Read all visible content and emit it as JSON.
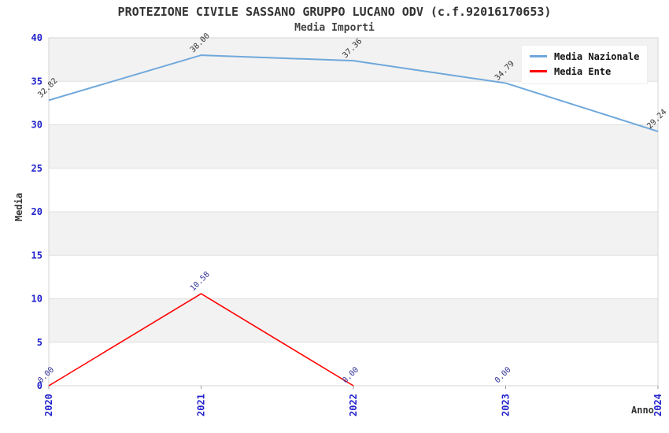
{
  "title": "PROTEZIONE CIVILE SASSANO GRUPPO LUCANO ODV (c.f.92016170653)",
  "subtitle": "Media Importi",
  "style": {
    "tick_label_color": "#2222CC",
    "grid_color": "#E0E0E0",
    "band_color": "#F2F2F2",
    "frame_color": "#D4D4D4",
    "tick_mark_color": "#999999",
    "axis_text_color": "#333333",
    "background": "#FFFFFF"
  },
  "chart_data": {
    "type": "line",
    "title": "PROTEZIONE CIVILE SASSANO GRUPPO LUCANO ODV (c.f.92016170653)",
    "subtitle": "Media Importi",
    "xlabel": "Anno",
    "ylabel": "Media",
    "x_categories": [
      "2020",
      "2021",
      "2022",
      "2023",
      "2024"
    ],
    "ylim": [
      0,
      40
    ],
    "y_ticks": [
      0,
      5,
      10,
      15,
      20,
      25,
      30,
      35,
      40
    ],
    "grid": "horizontal",
    "plot_background": "alternating horizontal bands",
    "legend_position": "top-right",
    "series": [
      {
        "name": "Media Nazionale",
        "color": "#6FA8DB",
        "label_color": "#333333",
        "values": [
          32.82,
          38.0,
          37.36,
          34.79,
          29.24
        ],
        "point_labels": [
          "32.82",
          "38.00",
          "37.36",
          "34.79",
          "29.24"
        ]
      },
      {
        "name": "Media Ente",
        "color": "#FF0000",
        "label_color": "#333399",
        "values": [
          0,
          10.58,
          0,
          0,
          null
        ],
        "point_labels": [
          "0.00",
          "10.58",
          "0.00",
          "0.00",
          ""
        ],
        "line_drawn_through_first_n_points": 3
      }
    ]
  }
}
